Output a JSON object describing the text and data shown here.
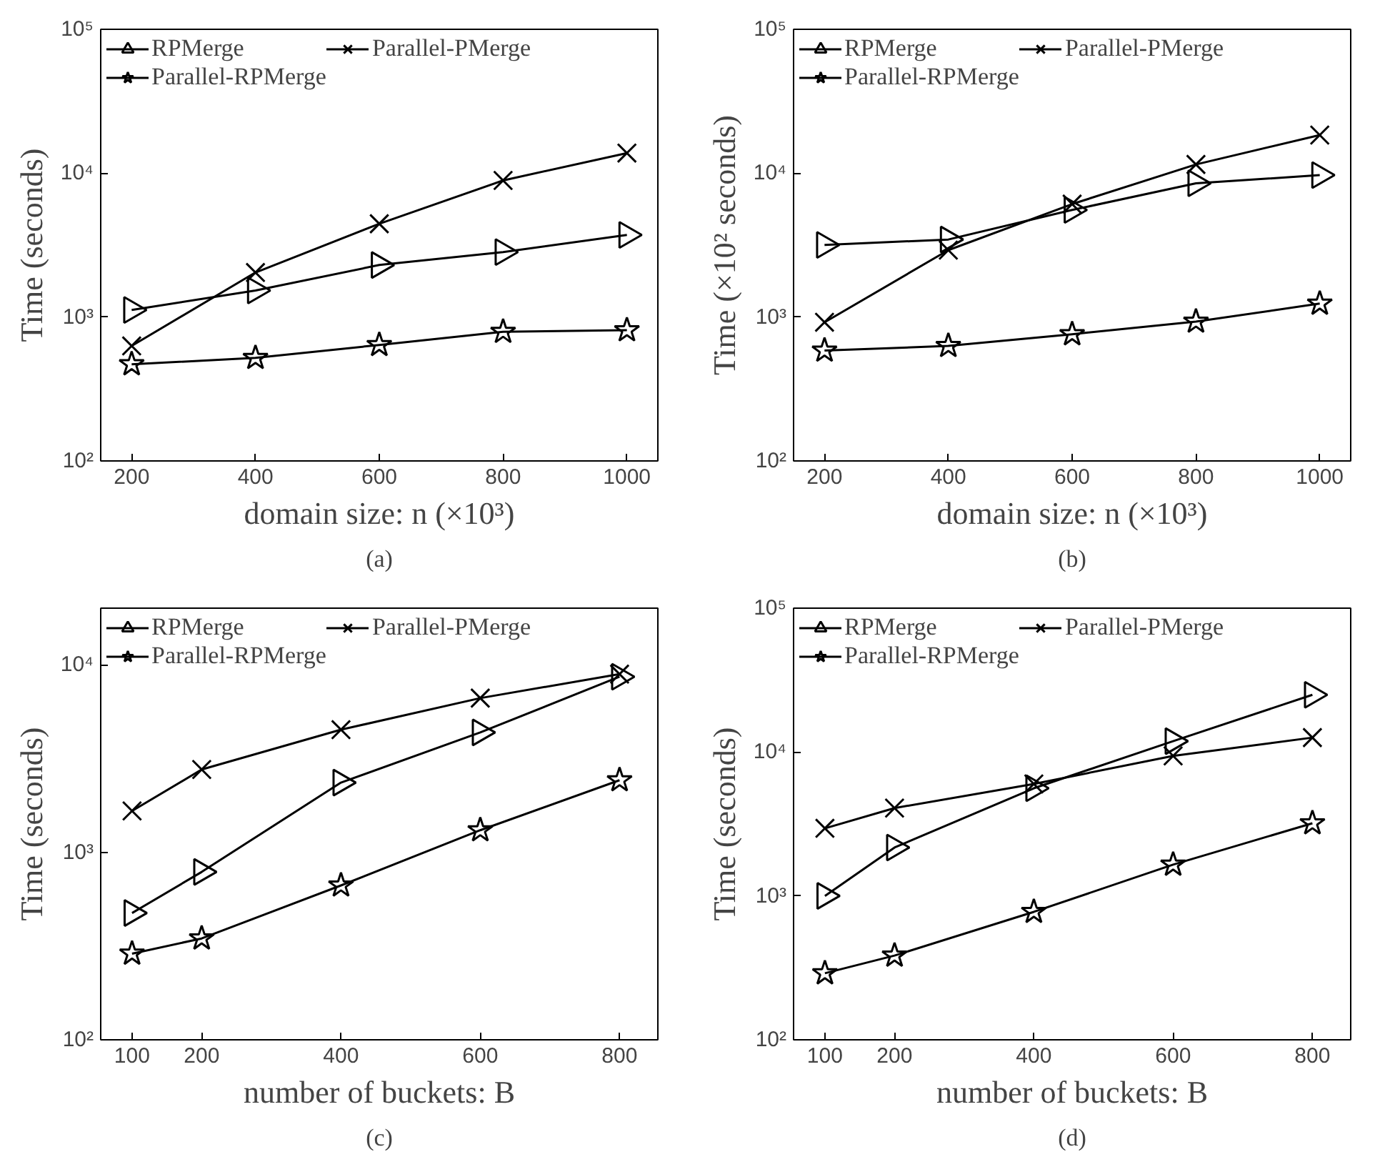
{
  "chart_data": [
    {
      "type": "line",
      "title": "(a)",
      "xlabel": "domain size: n (×10³)",
      "ylabel": "Time (seconds)",
      "x": [
        200,
        400,
        600,
        800,
        1000
      ],
      "xlim": [
        150,
        1050
      ],
      "xticks": [
        200,
        400,
        600,
        800,
        1000
      ],
      "ylim": [
        100,
        100000
      ],
      "yticks": [
        {
          "value": 100,
          "label": "10²"
        },
        {
          "value": 1000,
          "label": "10³"
        },
        {
          "value": 10000,
          "label": "10⁴"
        },
        {
          "value": 100000,
          "label": "10⁵"
        }
      ],
      "log": true,
      "grid": false,
      "legend": "top left",
      "series": [
        {
          "name": "RPMerge",
          "color": "#000000",
          "marker": "triangle",
          "values": [
            1120,
            1530,
            2300,
            2830,
            3720
          ]
        },
        {
          "name": "Parallel-PMerge",
          "color": "#000000",
          "marker": "cross",
          "values": [
            630,
            2040,
            4450,
            8900,
            13800
          ]
        },
        {
          "name": "Parallel-RPMerge",
          "color": "#000000",
          "marker": "star",
          "values": [
            470,
            520,
            640,
            790,
            810
          ]
        }
      ]
    },
    {
      "type": "line",
      "title": "(b)",
      "xlabel": "domain size: n (×10³)",
      "ylabel": "Time (×10² seconds)",
      "x": [
        200,
        400,
        600,
        800,
        1000
      ],
      "xlim": [
        150,
        1050
      ],
      "xticks": [
        200,
        400,
        600,
        800,
        1000
      ],
      "ylim": [
        100,
        100000
      ],
      "yticks": [
        {
          "value": 100,
          "label": "10²"
        },
        {
          "value": 1000,
          "label": "10³"
        },
        {
          "value": 10000,
          "label": "10⁴"
        },
        {
          "value": 100000,
          "label": "10⁵"
        }
      ],
      "log": true,
      "grid": false,
      "legend": "top left",
      "series": [
        {
          "name": "RPMerge",
          "color": "#000000",
          "marker": "triangle",
          "values": [
            3170,
            3460,
            5550,
            8500,
            9700
          ]
        },
        {
          "name": "Parallel-PMerge",
          "color": "#000000",
          "marker": "cross",
          "values": [
            920,
            2920,
            6100,
            11500,
            18400
          ]
        },
        {
          "name": "Parallel-RPMerge",
          "color": "#000000",
          "marker": "star",
          "values": [
            585,
            630,
            760,
            930,
            1240
          ]
        }
      ]
    },
    {
      "type": "line",
      "title": "(c)",
      "xlabel": "number of buckets: B",
      "ylabel": "Time (seconds)",
      "x": [
        100,
        200,
        400,
        600,
        800
      ],
      "xlim": [
        55,
        855
      ],
      "xticks": [
        100,
        200,
        400,
        600,
        800
      ],
      "ylim": [
        100,
        20000
      ],
      "yticks": [
        {
          "value": 100,
          "label": "10²"
        },
        {
          "value": 1000,
          "label": "10³"
        },
        {
          "value": 10000,
          "label": "10⁴"
        }
      ],
      "log": true,
      "grid": false,
      "legend": "top left",
      "series": [
        {
          "name": "RPMerge",
          "color": "#000000",
          "marker": "triangle",
          "values": [
            474,
            785,
            2350,
            4350,
            8620
          ]
        },
        {
          "name": "Parallel-PMerge",
          "color": "#000000",
          "marker": "cross",
          "values": [
            1660,
            2760,
            4500,
            6630,
            8900
          ]
        },
        {
          "name": "Parallel-RPMerge",
          "color": "#000000",
          "marker": "star",
          "values": [
            288,
            347,
            665,
            1310,
            2420
          ]
        }
      ]
    },
    {
      "type": "line",
      "title": "(d)",
      "xlabel": "number of buckets: B",
      "ylabel": "Time (seconds)",
      "x": [
        100,
        200,
        400,
        600,
        800
      ],
      "xlim": [
        55,
        855
      ],
      "xticks": [
        100,
        200,
        400,
        600,
        800
      ],
      "ylim": [
        100,
        100000
      ],
      "yticks": [
        {
          "value": 100,
          "label": "10²"
        },
        {
          "value": 1000,
          "label": "10³"
        },
        {
          "value": 10000,
          "label": "10⁴"
        },
        {
          "value": 100000,
          "label": "10⁵"
        }
      ],
      "log": true,
      "grid": false,
      "legend": "top left",
      "series": [
        {
          "name": "RPMerge",
          "color": "#000000",
          "marker": "triangle",
          "values": [
            1000,
            2170,
            5600,
            11900,
            25000
          ]
        },
        {
          "name": "Parallel-PMerge",
          "color": "#000000",
          "marker": "cross",
          "values": [
            2950,
            4080,
            6000,
            9400,
            12600
          ]
        },
        {
          "name": "Parallel-RPMerge",
          "color": "#000000",
          "marker": "star",
          "values": [
            290,
            385,
            775,
            1650,
            3200
          ]
        }
      ]
    }
  ]
}
